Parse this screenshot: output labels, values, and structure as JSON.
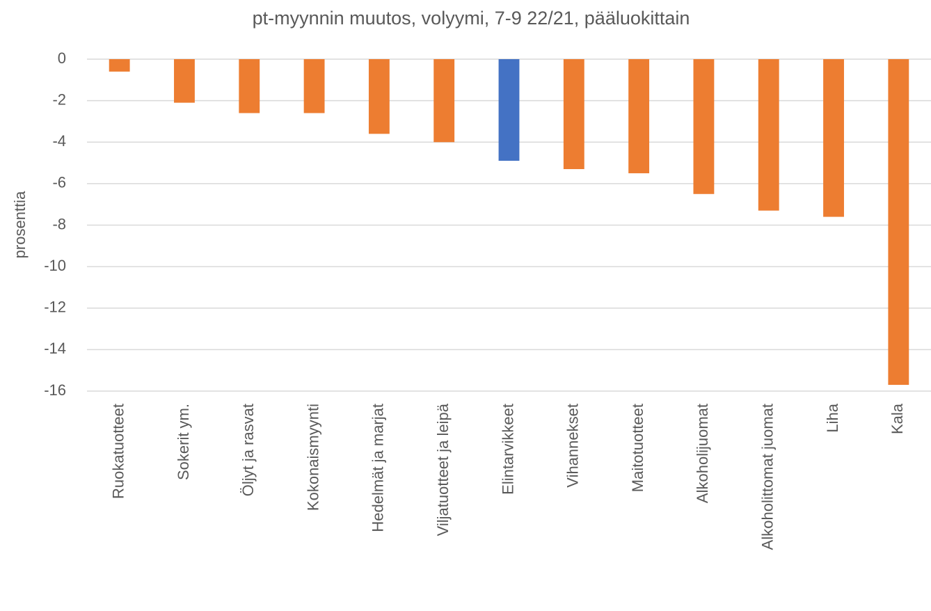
{
  "chart_data": {
    "type": "bar",
    "title": "pt-myynnin muutos, volyymi, 7-9 22/21, pääluokittain",
    "y_label": "prosenttia",
    "categories": [
      "Ruokatuotteet",
      "Sokerit ym.",
      "Öljyt ja rasvat",
      "Kokonaismyynti",
      "Hedelmät ja marjat",
      "Viljatuotteet ja leipä",
      "Elintarvikkeet",
      "Vihannekset",
      "Maitotuotteet",
      "Alkoholijuomat",
      "Alkoholittomat juomat",
      "Liha",
      "Kala"
    ],
    "values": [
      -0.6,
      -2.1,
      -2.6,
      -2.6,
      -3.6,
      -4.0,
      -4.9,
      -5.3,
      -5.5,
      -6.5,
      -7.3,
      -7.6,
      -15.7
    ],
    "colors": [
      "#ed7d31",
      "#ed7d31",
      "#ed7d31",
      "#ed7d31",
      "#ed7d31",
      "#ed7d31",
      "#4472c4",
      "#ed7d31",
      "#ed7d31",
      "#ed7d31",
      "#ed7d31",
      "#ed7d31",
      "#ed7d31"
    ],
    "ylim": [
      -16,
      0
    ],
    "yticks": [
      0,
      -2,
      -4,
      -6,
      -8,
      -10,
      -12,
      -14,
      -16
    ],
    "grid": true
  }
}
